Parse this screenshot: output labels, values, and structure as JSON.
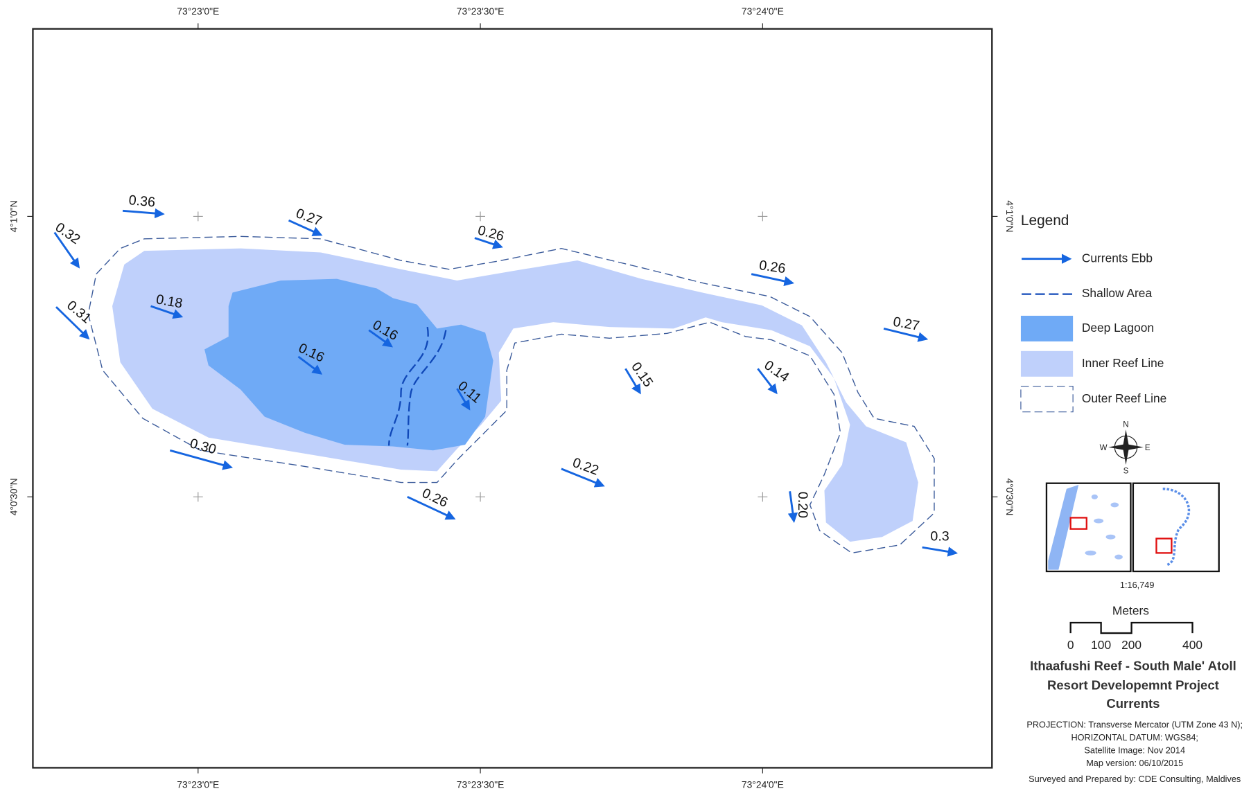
{
  "graticule": {
    "top": [
      "73°23'0\"E",
      "73°23'30\"E",
      "73°24'0\"E"
    ],
    "bottom": [
      "73°23'0\"E",
      "73°23'30\"E",
      "73°24'0\"E"
    ],
    "left": [
      "4°1'0\"N",
      "4°0'30\"N"
    ],
    "right": [
      "4°1'0\"N",
      "4°0'30\"N"
    ]
  },
  "currents": [
    "0.36",
    "0.32",
    "0.31",
    "0.27",
    "0.26",
    "0.26",
    "0.27",
    "0.18",
    "0.16",
    "0.16",
    "0.11",
    "0.15",
    "0.14",
    "0.30",
    "0.22",
    "0.26",
    "0.20",
    "0.3"
  ],
  "legend": {
    "title": "Legend",
    "items": [
      "Currents Ebb",
      "Shallow Area",
      "Deep Lagoon",
      "Inner Reef Line",
      "Outer Reef Line"
    ]
  },
  "compass": {
    "n": "N",
    "e": "E",
    "s": "S",
    "w": "W"
  },
  "scale_ratio": "1:16,749",
  "scale_bar": {
    "unit": "Meters",
    "ticks": [
      "0",
      "100",
      "200",
      "400"
    ]
  },
  "title": [
    "Ithaafushi Reef - South Male' Atoll",
    "Resort Developemnt Project",
    "Currents"
  ],
  "notes": [
    "PROJECTION: Transverse Mercator (UTM Zone 43 N);",
    "HORIZONTAL DATUM: WGS84;",
    "Satellite Image: Nov 2014",
    "Map version: 06/10/2015"
  ],
  "credit": "Surveyed and Prepared by: CDE Consulting, Maldives"
}
